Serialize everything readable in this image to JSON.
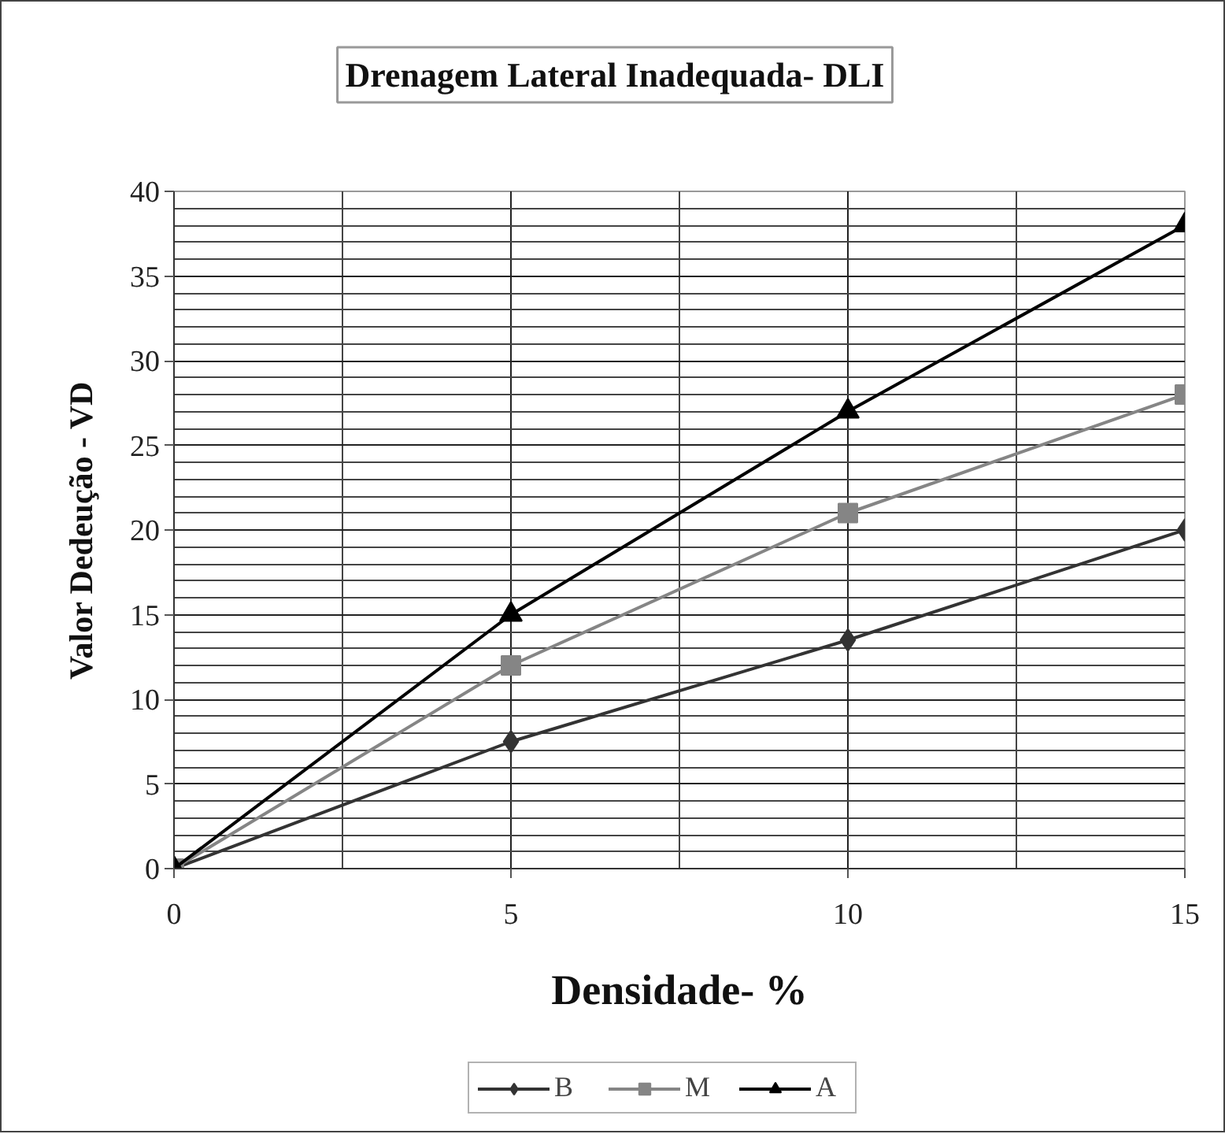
{
  "chart_data": {
    "type": "line",
    "title": "Drenagem Lateral Inadequada- DLI",
    "xlabel": "Densidade- %",
    "ylabel": "Valor Dedeução - VD",
    "x": [
      0,
      5,
      10,
      15
    ],
    "series": [
      {
        "name": "B",
        "color": "#333333",
        "marker": "diamond",
        "values": [
          0,
          7.5,
          13.5,
          20
        ]
      },
      {
        "name": "M",
        "color": "#858585",
        "marker": "square",
        "values": [
          0,
          12,
          21,
          28
        ]
      },
      {
        "name": "A",
        "color": "#000000",
        "marker": "triangle",
        "values": [
          0,
          15,
          27,
          38
        ]
      }
    ],
    "xlim": [
      0,
      15
    ],
    "ylim": [
      0,
      40
    ],
    "xticks": [
      0,
      5,
      10,
      15
    ],
    "yticks": [
      0,
      5,
      10,
      15,
      20,
      25,
      30,
      35,
      40
    ],
    "grid": true,
    "legend": "bottom",
    "line_style": "solid"
  }
}
